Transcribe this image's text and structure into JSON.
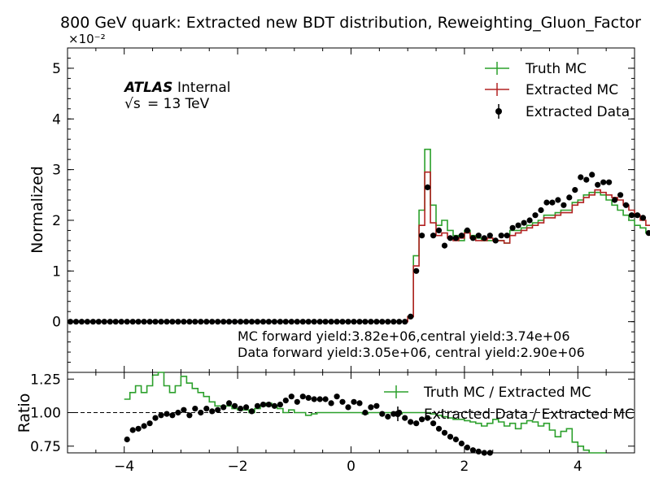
{
  "title": "800 GeV quark: Extracted new BDT distribution, Reweighting_Gluon_Factor",
  "atlas": {
    "label": "ATLAS",
    "status": "Internal",
    "energy_text": "= 13 TeV",
    "sqrt_s": "√s"
  },
  "annotations": {
    "mc_yield": "MC forward yield:3.82e+06,central yield:3.74e+06",
    "data_yield": "Data forward yield:3.05e+06, central yield:2.90e+06"
  },
  "colors": {
    "truth": "#2ca02c",
    "extracted": "#b22222",
    "data": "#000000"
  },
  "chart_data": [
    {
      "type": "line",
      "panel": "main",
      "ylabel": "Normalized",
      "y_exponent": "×10⁻²",
      "xlim": [
        -5,
        5
      ],
      "ylim": [
        -1,
        5.4
      ],
      "yticks": [
        "0",
        "1",
        "2",
        "3",
        "4",
        "5"
      ],
      "ytick_values": [
        0,
        1,
        2,
        3,
        4,
        5
      ],
      "bin_edges_start": -5,
      "bin_width": 0.1,
      "legend": [
        "Truth MC",
        "Extracted MC",
        "Extracted Data"
      ],
      "legend_position": "top-right",
      "series": [
        {
          "name": "Truth MC",
          "style": "step",
          "color_key": "truth",
          "values": [
            0,
            0,
            0,
            0,
            0,
            0,
            0,
            0,
            0,
            0,
            0,
            0,
            0,
            0,
            0,
            0,
            0,
            0,
            0,
            0,
            0,
            0,
            0,
            0,
            0,
            0,
            0,
            0,
            0,
            0,
            0,
            0,
            0,
            0,
            0,
            0,
            0,
            0,
            0,
            0,
            0,
            0,
            0,
            0,
            0,
            0,
            0,
            0,
            0,
            0,
            0,
            0,
            0,
            0,
            0,
            0,
            0,
            0,
            0,
            0,
            0.1,
            1.3,
            2.2,
            3.4,
            2.3,
            1.9,
            2.0,
            1.8,
            1.7,
            1.6,
            1.8,
            1.7,
            1.65,
            1.6,
            1.6,
            1.6,
            1.6,
            1.55,
            1.8,
            1.8,
            1.85,
            1.9,
            1.95,
            2.0,
            2.1,
            2.1,
            2.15,
            2.2,
            2.2,
            2.35,
            2.4,
            2.5,
            2.55,
            2.55,
            2.5,
            2.4,
            2.3,
            2.2,
            2.1,
            2.0,
            1.9,
            1.85,
            1.75,
            1.6,
            1.55,
            1.5,
            1.45,
            1.4,
            1.3,
            1.2,
            1.1,
            1.0,
            0.9,
            0.8,
            0.7,
            0.6,
            0.5,
            0.4,
            0.3,
            0.2,
            0.15,
            0.1,
            0.05,
            0.02,
            0,
            0,
            0,
            0,
            0,
            0,
            0,
            0,
            0,
            0,
            0,
            0,
            0,
            0,
            0,
            0,
            0,
            0,
            0,
            0,
            0,
            0,
            0,
            0,
            0,
            0,
            0,
            0,
            0,
            0,
            0,
            0,
            0,
            0,
            0,
            0
          ]
        },
        {
          "name": "Extracted MC",
          "style": "step",
          "color_key": "extracted",
          "values": [
            0,
            0,
            0,
            0,
            0,
            0,
            0,
            0,
            0,
            0,
            0,
            0,
            0,
            0,
            0,
            0,
            0,
            0,
            0,
            0,
            0,
            0,
            0,
            0,
            0,
            0,
            0,
            0,
            0,
            0,
            0,
            0,
            0,
            0,
            0,
            0,
            0,
            0,
            0,
            0,
            0,
            0,
            0,
            0,
            0,
            0,
            0,
            0,
            0,
            0,
            0,
            0,
            0,
            0,
            0,
            0,
            0,
            0,
            0,
            0,
            0.1,
            1.1,
            1.9,
            2.95,
            1.95,
            1.7,
            1.75,
            1.65,
            1.6,
            1.65,
            1.75,
            1.65,
            1.6,
            1.6,
            1.65,
            1.6,
            1.6,
            1.55,
            1.7,
            1.75,
            1.8,
            1.85,
            1.9,
            1.95,
            2.05,
            2.05,
            2.1,
            2.15,
            2.15,
            2.3,
            2.35,
            2.45,
            2.5,
            2.6,
            2.55,
            2.5,
            2.45,
            2.4,
            2.3,
            2.2,
            2.1,
            2.0,
            1.9,
            1.8,
            1.7,
            1.6,
            1.55,
            1.5,
            1.45,
            1.35,
            1.25,
            1.15,
            1.05,
            0.95,
            0.85,
            0.75,
            0.65,
            0.55,
            0.45,
            0.35,
            0.25,
            0.15,
            0.08,
            0.03,
            0,
            0,
            0,
            0,
            0,
            0,
            0,
            0,
            0,
            0,
            0,
            0,
            0,
            0,
            0,
            0,
            0,
            0,
            0,
            0,
            0,
            0,
            0,
            0,
            0,
            0,
            0,
            0,
            0,
            0,
            0,
            0,
            0,
            0,
            0,
            0
          ]
        },
        {
          "name": "Extracted Data",
          "style": "points",
          "color_key": "data",
          "values": [
            0,
            0,
            0,
            0,
            0,
            0,
            0,
            0,
            0,
            0,
            0,
            0,
            0,
            0,
            0,
            0,
            0,
            0,
            0,
            0,
            0,
            0,
            0,
            0,
            0,
            0,
            0,
            0,
            0,
            0,
            0,
            0,
            0,
            0,
            0,
            0,
            0,
            0,
            0,
            0,
            0,
            0,
            0,
            0,
            0,
            0,
            0,
            0,
            0,
            0,
            0,
            0,
            0,
            0,
            0,
            0,
            0,
            0,
            0,
            0,
            0.1,
            1.0,
            1.7,
            2.65,
            1.7,
            1.8,
            1.5,
            1.65,
            1.65,
            1.7,
            1.8,
            1.65,
            1.7,
            1.65,
            1.7,
            1.6,
            1.7,
            1.7,
            1.85,
            1.9,
            1.95,
            2.0,
            2.1,
            2.2,
            2.35,
            2.35,
            2.4,
            2.3,
            2.45,
            2.6,
            2.85,
            2.8,
            2.9,
            2.7,
            2.75,
            2.75,
            2.4,
            2.5,
            2.3,
            2.1,
            2.1,
            2.05,
            1.75,
            1.65,
            1.55,
            1.45,
            1.35,
            1.3,
            1.2,
            1.1,
            0.95,
            0.85,
            0.75,
            0.65,
            0.55,
            0.45,
            0.35,
            0.3,
            0.2,
            0.1,
            0.05,
            0.02,
            0,
            0,
            0,
            0,
            0,
            0,
            0,
            0,
            0,
            0,
            0,
            0,
            0,
            0,
            0,
            0,
            0,
            0,
            0,
            0,
            0,
            0,
            0,
            0,
            0,
            0,
            0,
            0,
            0,
            0,
            0,
            0,
            0,
            0,
            0,
            0,
            0,
            0
          ]
        }
      ]
    },
    {
      "type": "line",
      "panel": "ratio",
      "ylabel": "Ratio",
      "xlim": [
        -5,
        5
      ],
      "ylim": [
        0.7,
        1.3
      ],
      "yticks": [
        "0.75",
        "1.00",
        "1.25"
      ],
      "ytick_values": [
        0.75,
        1.0,
        1.25
      ],
      "xticks": [
        "−4",
        "−2",
        "0",
        "2",
        "4"
      ],
      "xtick_values": [
        -4,
        -2,
        0,
        2,
        4
      ],
      "reference_line": 1.0,
      "legend": [
        "Truth MC / Extracted MC",
        "Extracted Data / Extracted MC"
      ],
      "legend_position": "top-right",
      "bin_edges_start": -4.0,
      "bin_width": 0.1,
      "series": [
        {
          "name": "Truth MC / Extracted MC",
          "style": "step",
          "color_key": "truth",
          "values": [
            1.1,
            1.15,
            1.2,
            1.15,
            1.2,
            1.28,
            1.3,
            1.2,
            1.15,
            1.2,
            1.27,
            1.22,
            1.18,
            1.15,
            1.12,
            1.08,
            1.05,
            1.05,
            1.05,
            1.03,
            1.02,
            1.02,
            1.0,
            1.03,
            1.05,
            1.07,
            1.05,
            1.03,
            1.0,
            1.02,
            1.0,
            1.0,
            0.98,
            0.99,
            1.0,
            1.0,
            1.0,
            1.0,
            1.0,
            1.0,
            1.0,
            1.0,
            0.99,
            1.0,
            1.0,
            1.0,
            1.0,
            1.0,
            0.99,
            1.0,
            1.0,
            1.0,
            1.0,
            1.0,
            0.99,
            0.98,
            0.97,
            0.96,
            0.95,
            0.95,
            0.94,
            0.93,
            0.92,
            0.9,
            0.92,
            0.95,
            0.93,
            0.9,
            0.92,
            0.88,
            0.92,
            0.94,
            0.93,
            0.9,
            0.92,
            0.87,
            0.82,
            0.86,
            0.88,
            0.78,
            0.75,
            0.72,
            0.7,
            0.7,
            0.7
          ]
        },
        {
          "name": "Extracted Data / Extracted MC",
          "style": "points",
          "color_key": "data",
          "values": [
            0.8,
            0.87,
            0.88,
            0.9,
            0.92,
            0.96,
            0.98,
            0.99,
            0.98,
            1.0,
            1.02,
            0.98,
            1.03,
            1.0,
            1.03,
            1.01,
            1.02,
            1.04,
            1.07,
            1.05,
            1.03,
            1.04,
            1.01,
            1.05,
            1.06,
            1.06,
            1.05,
            1.06,
            1.09,
            1.12,
            1.08,
            1.12,
            1.11,
            1.1,
            1.1,
            1.1,
            1.07,
            1.12,
            1.08,
            1.04,
            1.08,
            1.07,
            1.0,
            1.04,
            1.05,
            0.99,
            0.97,
            0.99,
            1.0,
            0.96,
            0.93,
            0.92,
            0.95,
            0.96,
            0.92,
            0.88,
            0.85,
            0.82,
            0.8,
            0.77,
            0.74,
            0.72,
            0.71,
            0.7,
            0.7
          ]
        }
      ]
    }
  ]
}
